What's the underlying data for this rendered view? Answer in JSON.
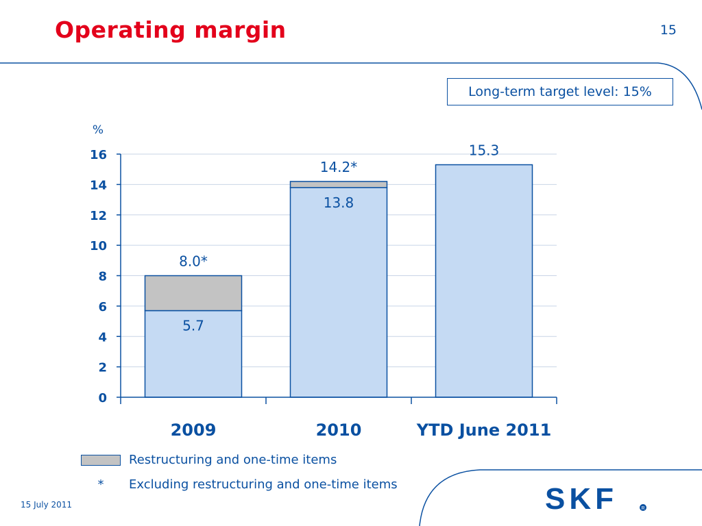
{
  "slide": {
    "title": "Operating margin",
    "page_number": "15",
    "target_label": "Long-term target level: 15%",
    "date": "15 July 2011",
    "legend_restructuring": "Restructuring and one-time items",
    "footnote_symbol": "*",
    "footnote_text": "Excluding restructuring and one-time items",
    "logo_text": "SKF",
    "colors": {
      "title": "#e3001b",
      "text": "#0a50a1",
      "bar": "#c5daf3",
      "restructuring": "#c3c3c3",
      "grid": "#c8d4e6"
    }
  },
  "chart_data": {
    "type": "bar",
    "stacked": true,
    "ylabel": "%",
    "ylim": [
      0,
      16
    ],
    "yticks": [
      0,
      2,
      4,
      6,
      8,
      10,
      12,
      14,
      16
    ],
    "categories": [
      "2009",
      "2010",
      "YTD June 2011"
    ],
    "series": [
      {
        "values": [
          5.7,
          13.8,
          15.3
        ]
      },
      {
        "name": "Restructuring and one-time items",
        "values": [
          2.3,
          0.4,
          0
        ]
      }
    ],
    "total_labels": [
      "8.0*",
      "14.2*",
      "15.3"
    ],
    "base_labels": [
      "5.7",
      "13.8",
      ""
    ],
    "grid": true,
    "legend": "bottom-left"
  }
}
